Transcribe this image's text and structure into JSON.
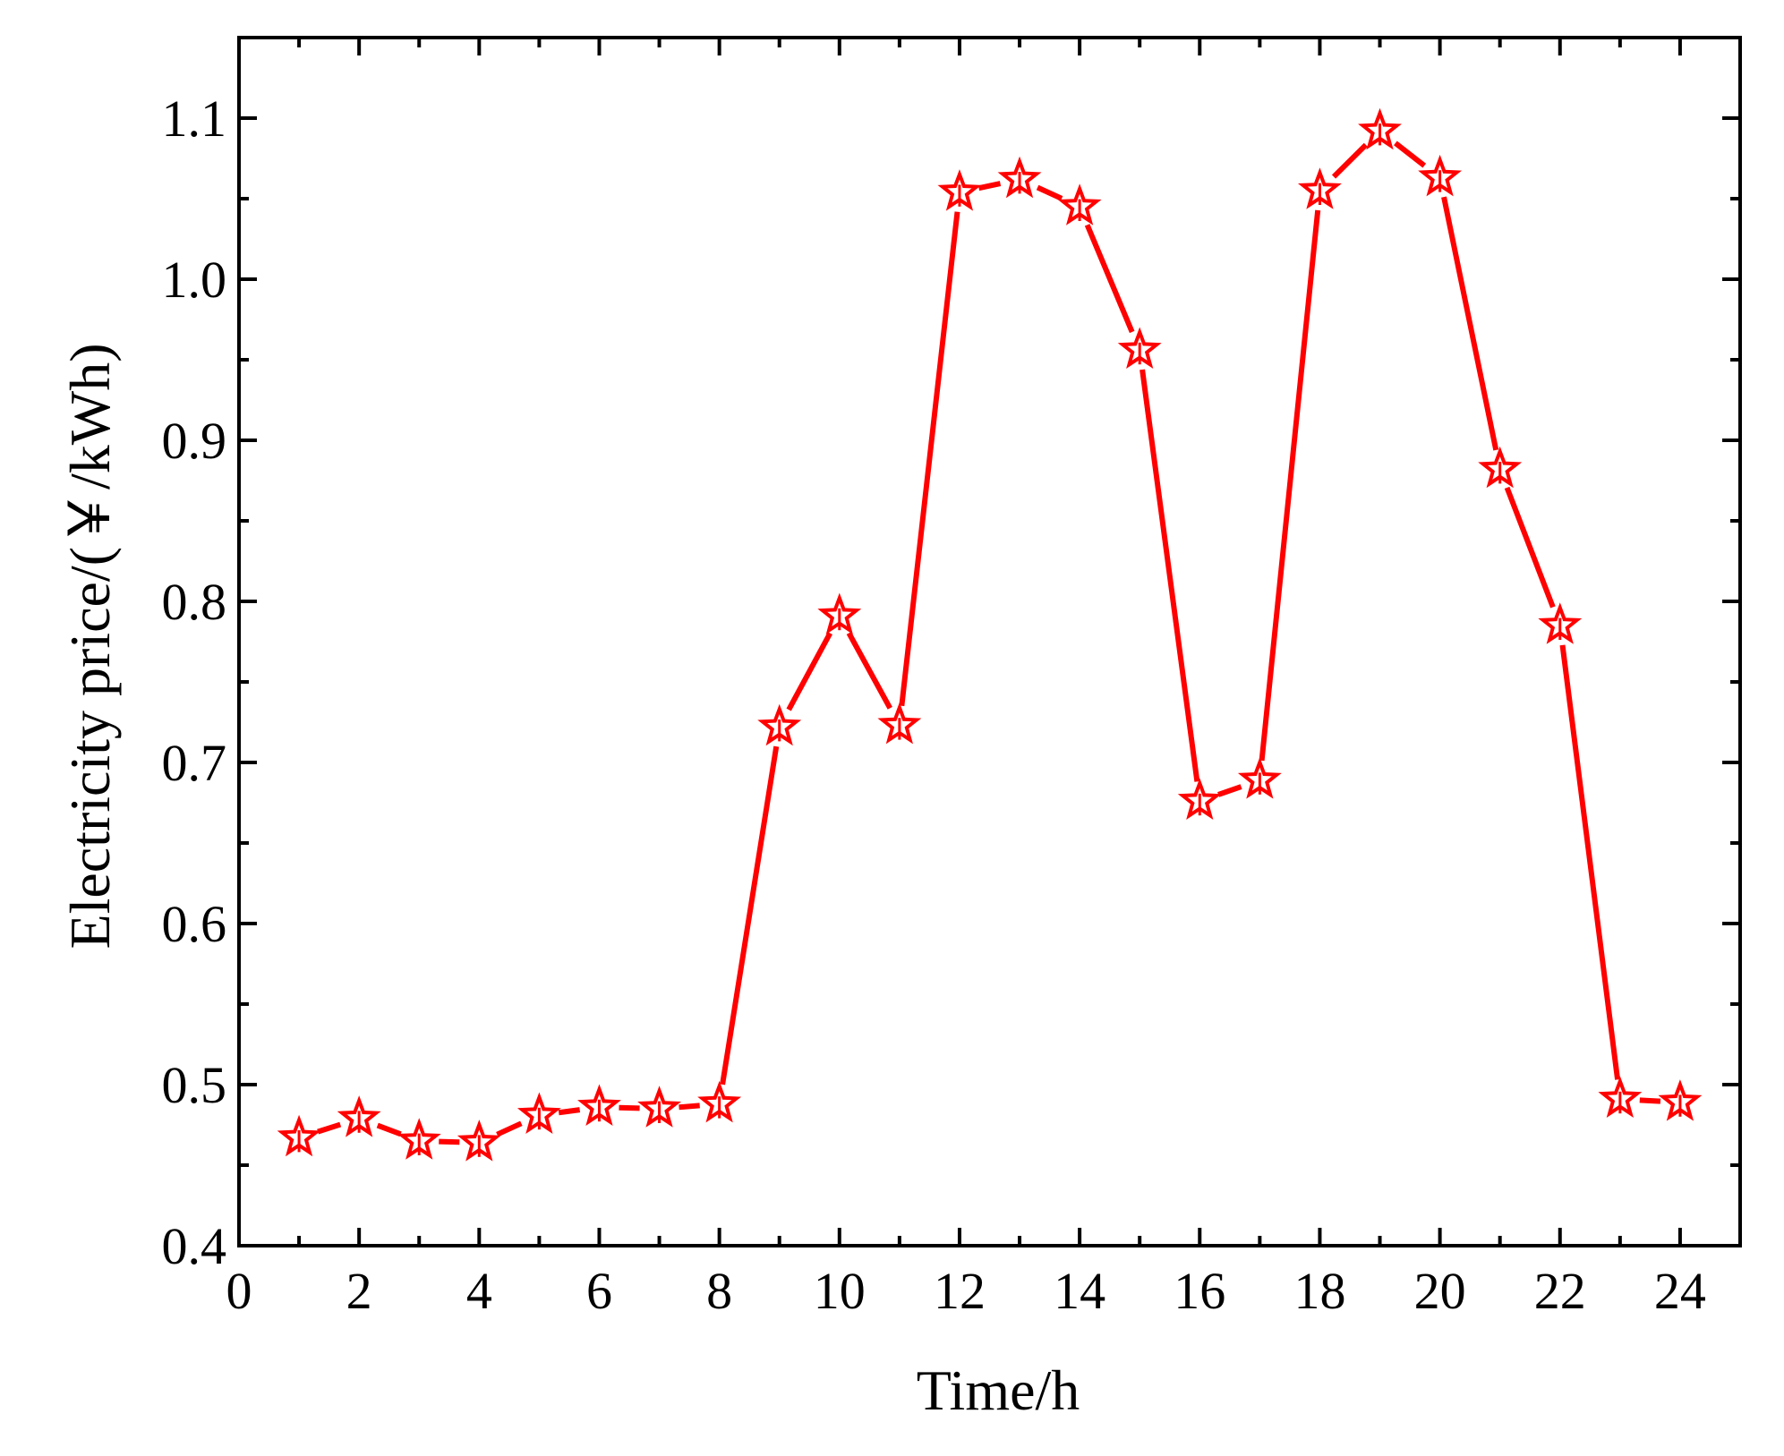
{
  "chart_data": {
    "type": "line",
    "title": "",
    "xlabel": "Time/h",
    "ylabel": "Electricity price/(￥/kWh)",
    "xlim": [
      0,
      25
    ],
    "ylim": [
      0.4,
      1.15
    ],
    "x_ticks": [
      0,
      2,
      4,
      6,
      8,
      10,
      12,
      14,
      16,
      18,
      20,
      22,
      24
    ],
    "x_tick_labels": [
      "0",
      "2",
      "4",
      "6",
      "8",
      "10",
      "12",
      "14",
      "16",
      "18",
      "20",
      "22",
      "24"
    ],
    "x_minor_ticks": [
      1,
      3,
      5,
      7,
      9,
      11,
      13,
      15,
      17,
      19,
      21,
      23,
      25
    ],
    "y_ticks": [
      0.4,
      0.5,
      0.6,
      0.7,
      0.8,
      0.9,
      1.0,
      1.1
    ],
    "y_tick_labels": [
      "0.4",
      "0.5",
      "0.6",
      "0.7",
      "0.8",
      "0.9",
      "1.0",
      "1.1"
    ],
    "y_minor_ticks": [
      0.45,
      0.55,
      0.65,
      0.75,
      0.85,
      0.95,
      1.05
    ],
    "grid": false,
    "legend": "none",
    "series": [
      {
        "color": "#ff0000",
        "marker": "star-icon",
        "line_style": "solid",
        "x": [
          1,
          2,
          3,
          4,
          5,
          6,
          7,
          8,
          9,
          10,
          11,
          12,
          13,
          14,
          15,
          16,
          17,
          18,
          19,
          20,
          21,
          22,
          23,
          24
        ],
        "y": [
          0.467,
          0.479,
          0.465,
          0.464,
          0.481,
          0.486,
          0.485,
          0.488,
          0.722,
          0.791,
          0.723,
          1.054,
          1.062,
          1.045,
          0.956,
          0.676,
          0.689,
          1.055,
          1.092,
          1.063,
          0.882,
          0.785,
          0.491,
          0.489
        ]
      }
    ]
  }
}
